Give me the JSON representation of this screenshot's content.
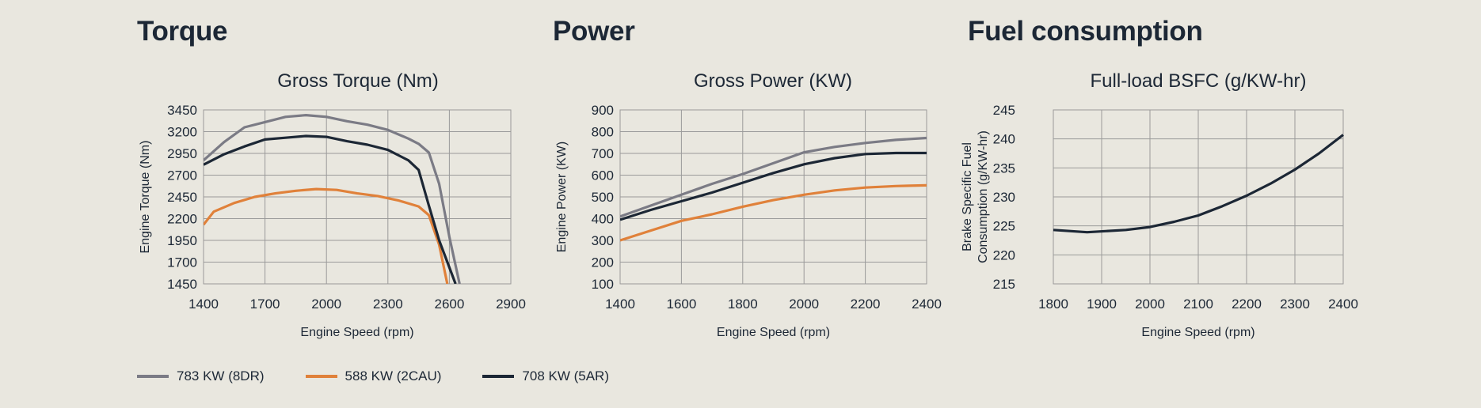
{
  "sections": {
    "torque": "Torque",
    "power": "Power",
    "fuel": "Fuel consumption"
  },
  "colors": {
    "783 KW (8DR)": "#7b7b85",
    "588 KW (2CAU)": "#e0813a",
    "708 KW (5AR)": "#1c2735"
  },
  "legend": [
    {
      "label": "783 KW (8DR)",
      "color": "#7b7b85"
    },
    {
      "label": "588 KW (2CAU)",
      "color": "#e0813a"
    },
    {
      "label": "708 KW (5AR)",
      "color": "#1c2735"
    }
  ],
  "chart_data": [
    {
      "type": "line",
      "title": "Gross Torque (Nm)",
      "xlabel": "Engine Speed (rpm)",
      "ylabel": "Engine Torque (Nm)",
      "xlim": [
        1400,
        2900
      ],
      "ylim": [
        1450,
        3450
      ],
      "xticks": [
        1400,
        1700,
        2000,
        2300,
        2600,
        2900
      ],
      "yticks": [
        1450,
        1700,
        1950,
        2200,
        2450,
        2700,
        2950,
        3200,
        3450
      ],
      "grid": true,
      "series": [
        {
          "name": "783 KW (8DR)",
          "x": [
            1400,
            1500,
            1600,
            1700,
            1800,
            1900,
            2000,
            2100,
            2200,
            2300,
            2400,
            2450,
            2500,
            2550,
            2600,
            2650
          ],
          "y": [
            2870,
            3080,
            3250,
            3310,
            3370,
            3390,
            3370,
            3320,
            3280,
            3220,
            3120,
            3060,
            2960,
            2600,
            1990,
            1450
          ]
        },
        {
          "name": "588 KW (2CAU)",
          "x": [
            1400,
            1450,
            1550,
            1650,
            1750,
            1850,
            1950,
            2050,
            2150,
            2250,
            2350,
            2450,
            2500,
            2550,
            2590
          ],
          "y": [
            2130,
            2280,
            2380,
            2450,
            2490,
            2520,
            2540,
            2530,
            2490,
            2460,
            2410,
            2340,
            2240,
            1900,
            1450
          ]
        },
        {
          "name": "708 KW (5AR)",
          "x": [
            1400,
            1500,
            1600,
            1700,
            1800,
            1900,
            2000,
            2100,
            2200,
            2300,
            2400,
            2450,
            2500,
            2550,
            2630
          ],
          "y": [
            2820,
            2940,
            3030,
            3110,
            3130,
            3150,
            3140,
            3090,
            3050,
            2990,
            2870,
            2760,
            2350,
            1950,
            1450
          ]
        }
      ]
    },
    {
      "type": "line",
      "title": "Gross Power (KW)",
      "xlabel": "Engine Speed (rpm)",
      "ylabel": "Engine Power (KW)",
      "xlim": [
        1400,
        2400
      ],
      "ylim": [
        100,
        900
      ],
      "xticks": [
        1400,
        1600,
        1800,
        2000,
        2200,
        2400
      ],
      "yticks": [
        100,
        200,
        300,
        400,
        500,
        600,
        700,
        800,
        900
      ],
      "grid": true,
      "series": [
        {
          "name": "783 KW (8DR)",
          "x": [
            1400,
            1500,
            1600,
            1700,
            1800,
            1900,
            2000,
            2100,
            2200,
            2300,
            2400
          ],
          "y": [
            410,
            460,
            510,
            560,
            605,
            655,
            705,
            730,
            748,
            762,
            771
          ]
        },
        {
          "name": "588 KW (2CAU)",
          "x": [
            1400,
            1500,
            1600,
            1700,
            1800,
            1900,
            2000,
            2100,
            2200,
            2300,
            2400
          ],
          "y": [
            300,
            345,
            390,
            420,
            455,
            485,
            510,
            530,
            543,
            550,
            553
          ]
        },
        {
          "name": "708 KW (5AR)",
          "x": [
            1400,
            1500,
            1600,
            1700,
            1800,
            1900,
            2000,
            2100,
            2200,
            2300,
            2400
          ],
          "y": [
            395,
            440,
            480,
            520,
            565,
            610,
            650,
            678,
            697,
            702,
            702
          ]
        }
      ]
    },
    {
      "type": "line",
      "title": "Full-load BSFC (g/KW-hr)",
      "xlabel": "Engine Speed (rpm)",
      "ylabel": "Brake Specific Fuel Consumption (g/KW-hr)",
      "xlim": [
        1800,
        2400
      ],
      "ylim": [
        215,
        245
      ],
      "xticks": [
        1800,
        1900,
        2000,
        2100,
        2200,
        2300,
        2400
      ],
      "yticks": [
        215,
        220,
        225,
        230,
        235,
        240,
        245
      ],
      "grid": true,
      "series": [
        {
          "name": "708 KW (5AR)",
          "x": [
            1800,
            1870,
            1950,
            2000,
            2050,
            2100,
            2150,
            2200,
            2250,
            2300,
            2350,
            2400
          ],
          "y": [
            224.3,
            223.9,
            224.3,
            224.8,
            225.7,
            226.8,
            228.4,
            230.2,
            232.3,
            234.7,
            237.5,
            240.7
          ]
        }
      ]
    }
  ]
}
